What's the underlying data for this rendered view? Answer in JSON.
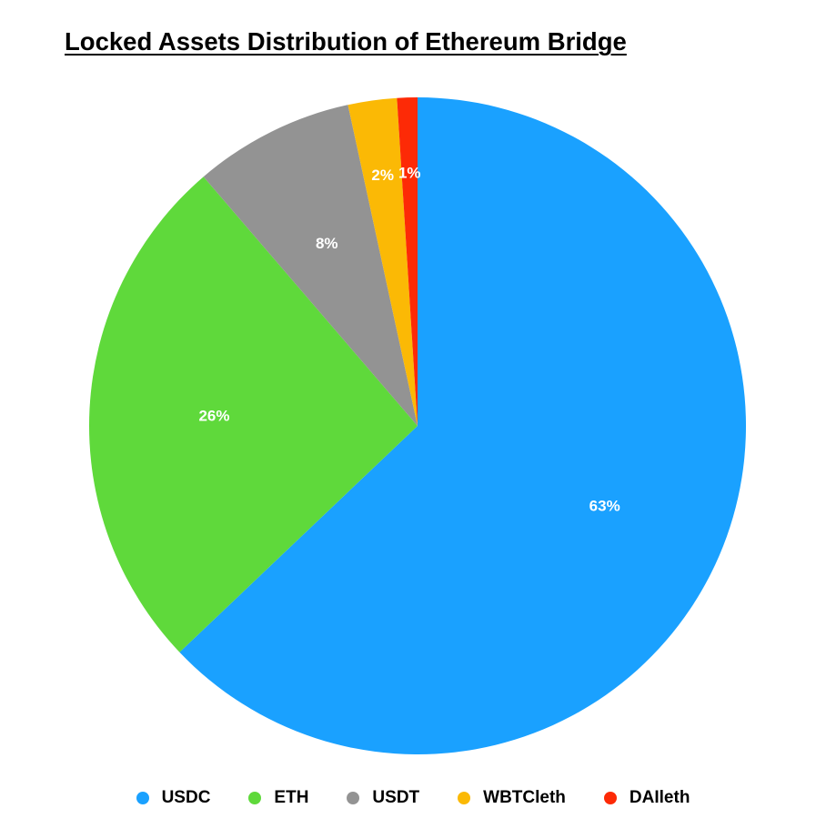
{
  "chart_data": {
    "type": "pie",
    "title": "Locked Assets Distribution of Ethereum Bridge",
    "categories": [
      "USDC",
      "ETH",
      "USDT",
      "WBTCleth",
      "DAIleth"
    ],
    "values": [
      62.9,
      25.8,
      7.9,
      2.4,
      1.0
    ],
    "value_labels": [
      "63%",
      "26%",
      "8%",
      "2%",
      "1%"
    ],
    "colors": [
      "#1aa1ff",
      "#5fd93b",
      "#939393",
      "#fbb905",
      "#fd2a06"
    ],
    "start_angle": "12 o'clock",
    "direction": "clockwise",
    "legend": "bottom"
  }
}
